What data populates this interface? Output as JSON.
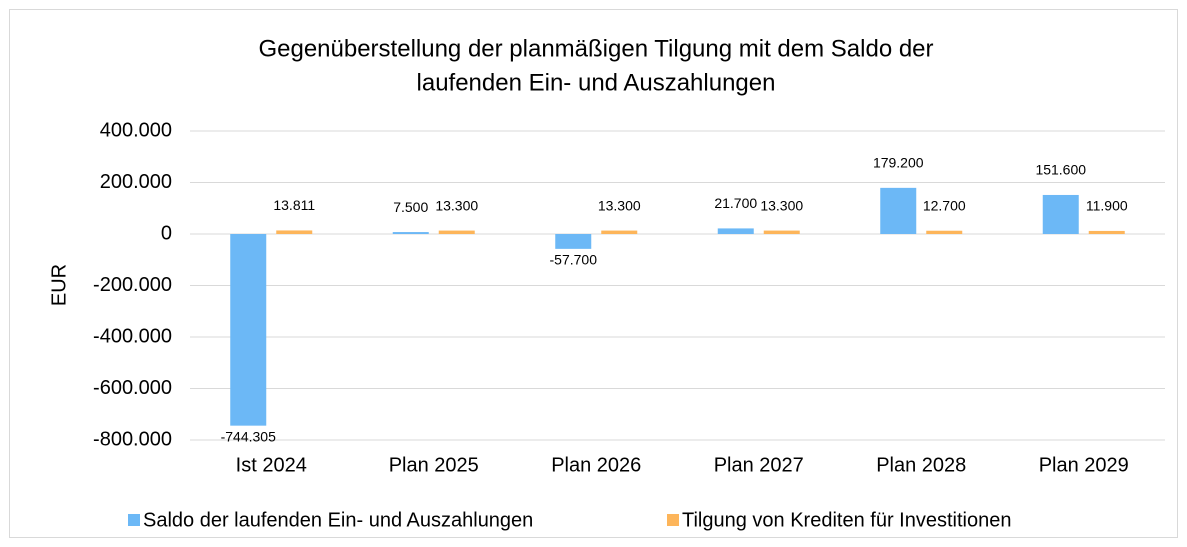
{
  "chart_data": {
    "type": "bar",
    "title": "Gegenüberstellung der planmäßigen Tilgung mit dem Saldo der",
    "subtitle": "laufenden Ein- und Auszahlungen",
    "y_label": "EUR",
    "categories": [
      "Ist 2024",
      "Plan 2025",
      "Plan 2026",
      "Plan 2027",
      "Plan 2028",
      "Plan 2029"
    ],
    "series": [
      {
        "name": "Saldo der laufenden Ein- und Auszahlungen",
        "color": "#6cb8f6",
        "values": [
          -744305,
          7500,
          -57700,
          21700,
          179200,
          151600
        ],
        "value_labels": [
          "-744.305",
          "7.500",
          "-57.700",
          "21.700",
          "179.200",
          "151.600"
        ]
      },
      {
        "name": "Tilgung von Krediten für Investitionen",
        "color": "#fdb55a",
        "values": [
          13811,
          13300,
          13300,
          13300,
          12700,
          11900
        ],
        "value_labels": [
          "13.811",
          "13.300",
          "13.300",
          "13.300",
          "12.700",
          "11.900"
        ]
      }
    ],
    "ylim": [
      -800000,
      400000
    ],
    "yticks": [
      {
        "value": -800000,
        "label": "-800.000"
      },
      {
        "value": -600000,
        "label": "-600.000"
      },
      {
        "value": -400000,
        "label": "-400.000"
      },
      {
        "value": -200000,
        "label": "-200.000"
      },
      0,
      {
        "value": 200000,
        "label": "200.000"
      },
      {
        "value": 400000,
        "label": "400.000"
      }
    ],
    "grid": true,
    "legend": "bottom"
  }
}
